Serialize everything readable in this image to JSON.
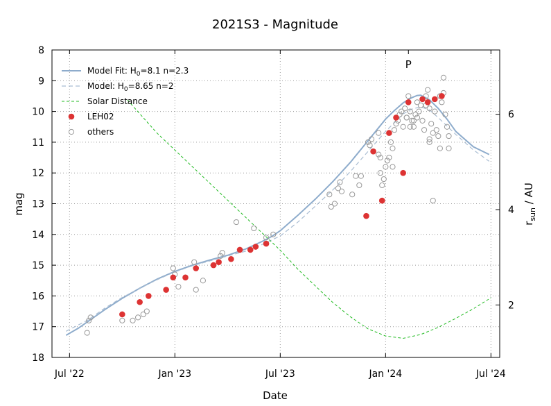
{
  "chart_data": {
    "type": "scatter",
    "title": "2021S3 - Magnitude",
    "xlabel": "Date",
    "ylabel": "mag",
    "y2label_main": "r",
    "y2label_sub": "sun",
    "y2label_tail": " / AU",
    "perihelion_label": "P",
    "xlim_months": [
      -1.0,
      24.5
    ],
    "ylim": [
      8,
      18
    ],
    "y_inverted": true,
    "y2lim": [
      0.9,
      7.35
    ],
    "grid": true,
    "legend_position": "top-left",
    "x_ticks": [
      {
        "label": "Jul '22",
        "month": 0
      },
      {
        "label": "Jan '23",
        "month": 6
      },
      {
        "label": "Jul '23",
        "month": 12
      },
      {
        "label": "Jan '24",
        "month": 18
      },
      {
        "label": "Jul '24",
        "month": 24
      }
    ],
    "y_ticks": [
      8,
      9,
      10,
      11,
      12,
      13,
      14,
      15,
      16,
      17,
      18
    ],
    "y2_ticks": [
      2,
      4,
      6
    ],
    "legend": [
      {
        "key": "fit",
        "label": "Model Fit: H",
        "sub": "0",
        "rest": "=8.1 n=2.3"
      },
      {
        "key": "model",
        "label": "Model: H",
        "sub": "0",
        "rest": "=8.65 n=2"
      },
      {
        "key": "solar",
        "label": "Solar Distance",
        "sub": "",
        "rest": ""
      },
      {
        "key": "leh02",
        "label": "LEH02",
        "sub": "",
        "rest": ""
      },
      {
        "key": "others",
        "label": "others",
        "sub": "",
        "rest": ""
      }
    ],
    "colors": {
      "fit": "#8eaccc",
      "model": "#a8bcd2",
      "solar": "#22bb22",
      "leh02": "#dd3333",
      "others": "#999999",
      "grid": "#9a9a9a"
    },
    "perihelion_month": 19.3,
    "series": [
      {
        "name": "Model Fit: H0=8.1 n=2.3",
        "style": "solid",
        "x": [
          -0.2,
          0.5,
          1,
          2,
          3,
          4,
          5,
          6,
          7,
          8,
          9,
          10,
          11,
          11.5,
          12,
          13,
          14,
          15,
          16,
          17,
          18,
          18.5,
          19,
          19.5,
          19.8,
          20,
          20.5,
          21,
          21.5,
          22,
          23,
          23.9
        ],
        "y": [
          17.28,
          17.05,
          16.85,
          16.45,
          16.08,
          15.75,
          15.45,
          15.2,
          15.0,
          14.83,
          14.68,
          14.48,
          14.22,
          14.07,
          13.88,
          13.38,
          12.85,
          12.28,
          11.65,
          10.95,
          10.25,
          9.97,
          9.72,
          9.55,
          9.48,
          9.47,
          9.62,
          9.9,
          10.25,
          10.65,
          11.15,
          11.4
        ]
      },
      {
        "name": "Model: H0=8.65 n=2",
        "style": "dashed",
        "x": [
          -0.2,
          1,
          2,
          3,
          4,
          5,
          6,
          7,
          8,
          9,
          10,
          11,
          12,
          13,
          14,
          15,
          16,
          17,
          18,
          19,
          19.5,
          20,
          20.5,
          21,
          22,
          23,
          23.9
        ],
        "y": [
          17.15,
          16.8,
          16.4,
          16.05,
          15.75,
          15.47,
          15.22,
          15.02,
          14.86,
          14.7,
          14.55,
          14.32,
          14.05,
          13.6,
          13.08,
          12.55,
          11.95,
          11.3,
          10.65,
          10.08,
          9.92,
          9.85,
          9.95,
          10.2,
          10.75,
          11.25,
          11.62
        ]
      },
      {
        "name": "Solar Distance",
        "style": "dashed",
        "axis": "y2",
        "x": [
          3.3,
          5,
          6,
          7,
          8,
          9,
          10,
          11,
          12,
          13,
          14,
          15,
          16,
          17,
          18,
          19,
          20,
          21,
          22,
          23,
          24
        ],
        "y": [
          6.3,
          5.6,
          5.25,
          4.9,
          4.55,
          4.2,
          3.85,
          3.5,
          3.15,
          2.75,
          2.4,
          2.05,
          1.75,
          1.5,
          1.35,
          1.3,
          1.38,
          1.53,
          1.72,
          1.92,
          2.15
        ]
      }
    ],
    "leh02": {
      "x": [
        3.0,
        4.0,
        4.5,
        5.5,
        5.9,
        6.6,
        7.2,
        8.2,
        8.5,
        9.2,
        9.7,
        10.3,
        10.6,
        11.2,
        16.9,
        17.8,
        19.0,
        17.3,
        18.2,
        18.6,
        19.3,
        20.1,
        20.4,
        20.8,
        21.2
      ],
      "y": [
        16.6,
        16.2,
        16.0,
        15.8,
        15.4,
        15.4,
        15.1,
        15.0,
        14.9,
        14.8,
        14.5,
        14.5,
        14.4,
        14.3,
        13.4,
        12.9,
        12.0,
        11.3,
        10.7,
        10.2,
        9.7,
        9.6,
        9.7,
        9.6,
        9.5
      ]
    },
    "others": {
      "x": [
        1.1,
        1.2,
        1.0,
        3.0,
        3.6,
        3.9,
        4.2,
        4.4,
        5.9,
        6.0,
        6.2,
        6.6,
        7.1,
        7.2,
        7.6,
        8.6,
        8.7,
        9.5,
        10.5,
        11.2,
        11.6,
        14.8,
        14.9,
        15.1,
        15.3,
        15.4,
        15.5,
        16.1,
        16.3,
        16.5,
        16.6,
        17.0,
        17.1,
        17.2,
        17.3,
        17.6,
        17.7,
        17.8,
        17.9,
        18.0,
        18.1,
        18.2,
        18.3,
        18.4,
        18.5,
        18.6,
        18.7,
        18.8,
        18.9,
        19.0,
        19.1,
        19.2,
        19.3,
        19.4,
        19.5,
        19.6,
        19.7,
        19.8,
        19.9,
        20.0,
        20.1,
        20.2,
        20.3,
        20.4,
        20.5,
        20.6,
        20.7,
        20.8,
        20.9,
        21.0,
        21.1,
        21.2,
        21.3,
        21.4,
        21.5,
        21.6,
        19.2,
        19.4,
        19.6,
        20.3,
        20.5,
        20.7,
        21.3,
        17.6,
        17.7,
        18.4,
        19.8,
        20.5,
        21.1,
        21.6
      ],
      "y": [
        16.8,
        16.7,
        17.2,
        16.8,
        16.8,
        16.7,
        16.6,
        16.5,
        15.1,
        15.3,
        15.7,
        15.4,
        14.9,
        15.8,
        15.5,
        14.7,
        14.6,
        13.6,
        13.8,
        14.1,
        14.0,
        12.7,
        13.1,
        13.0,
        12.5,
        12.3,
        12.6,
        12.7,
        12.1,
        12.4,
        12.1,
        11.0,
        11.1,
        10.9,
        11.3,
        10.7,
        11.5,
        12.4,
        12.2,
        11.8,
        11.6,
        11.5,
        11.0,
        11.2,
        10.6,
        10.4,
        10.3,
        10.1,
        10.0,
        10.5,
        9.9,
        10.2,
        9.5,
        10.0,
        10.3,
        10.5,
        10.1,
        9.7,
        10.0,
        9.8,
        10.3,
        10.6,
        9.5,
        9.3,
        9.9,
        10.4,
        10.7,
        10.0,
        10.6,
        10.8,
        9.5,
        9.7,
        9.4,
        10.1,
        10.5,
        10.8,
        10.2,
        10.5,
        10.3,
        9.8,
        11.0,
        12.9,
        8.9,
        11.4,
        12.0,
        11.8,
        10.2,
        10.9,
        11.2,
        11.2
      ]
    }
  }
}
